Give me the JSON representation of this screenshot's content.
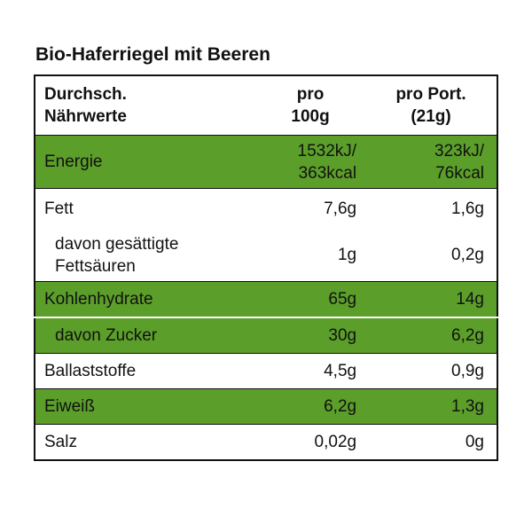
{
  "header": {
    "title": "Bio-Haferriegel mit Beeren"
  },
  "table": {
    "columns": [
      "Durchsch.\nNährwerte",
      "pro\n100g",
      "pro Port.\n(21g)"
    ],
    "rows": [
      [
        "Energie",
        "1532kJ/\n363kcal",
        "323kJ/\n76kcal"
      ],
      [
        "Fett",
        "7,6g",
        "1,6g"
      ],
      [
        "davon gesättigte\nFettsäuren",
        "1g",
        "0,2g"
      ],
      [
        "Kohlenhydrate",
        "65g",
        "14g"
      ],
      [
        "davon Zucker",
        "30g",
        "6,2g"
      ],
      [
        "Ballaststoffe",
        "4,5g",
        "0,9g"
      ],
      [
        "Eiweiß",
        "6,2g",
        "1,3g"
      ],
      [
        "Salz",
        "0,02g",
        "0g"
      ]
    ]
  }
}
